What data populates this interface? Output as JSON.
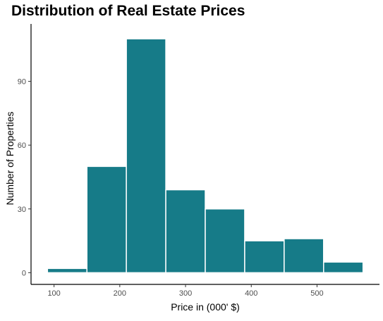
{
  "chart_data": {
    "type": "bar",
    "title": "Distribution of Real Estate Prices",
    "xlabel": "Price in (000' $)",
    "ylabel": "Number of Properties",
    "bins": [
      {
        "start": 90,
        "end": 150,
        "count": 2
      },
      {
        "start": 150,
        "end": 210,
        "count": 50
      },
      {
        "start": 210,
        "end": 270,
        "count": 110
      },
      {
        "start": 270,
        "end": 330,
        "count": 39
      },
      {
        "start": 330,
        "end": 390,
        "count": 30
      },
      {
        "start": 390,
        "end": 450,
        "count": 15
      },
      {
        "start": 450,
        "end": 510,
        "count": 16
      },
      {
        "start": 510,
        "end": 570,
        "count": 5
      }
    ],
    "xticks": [
      100,
      200,
      300,
      400,
      500
    ],
    "yticks": [
      0,
      30,
      60,
      90
    ],
    "xlim": [
      65,
      595
    ],
    "ylim": [
      -5.5,
      117
    ],
    "grid": false,
    "colors": {
      "bar_fill": "#167B88",
      "bar_edge": "#ffffff",
      "axis": "#000000",
      "tick_label": "#4d4d4d",
      "label": "#000000"
    }
  }
}
